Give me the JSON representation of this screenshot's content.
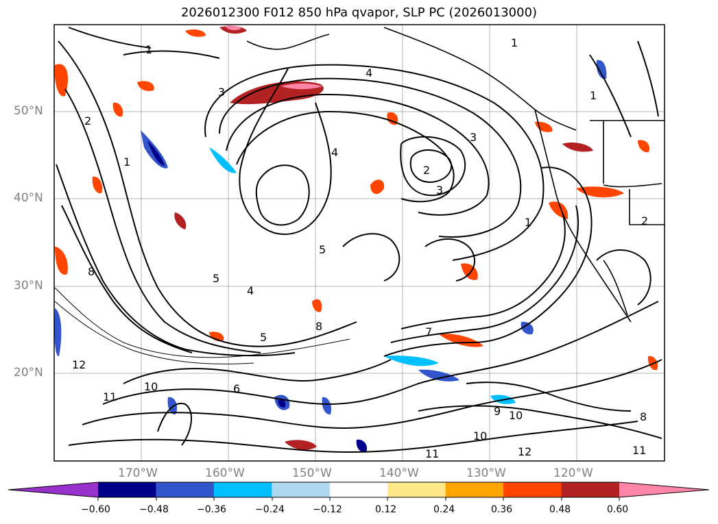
{
  "title": "2026012300 F012 850 hPa qvapor, SLP PC (2026013000)",
  "lat_labels": [
    "50°N",
    "40°N",
    "30°N",
    "20°N"
  ],
  "lon_labels": [
    "170°W",
    "160°W",
    "150°W",
    "140°W",
    "130°W",
    "120°W"
  ],
  "colorbar": {
    "colors": [
      "#9932cc",
      "#00008b",
      "#3355cc",
      "#00bfff",
      "#add8f0",
      "#ffffff",
      "#ffe88a",
      "#ffa500",
      "#ff4500",
      "#b22222",
      "#ff85a8"
    ],
    "ticks": [
      "−0.60",
      "−0.48",
      "−0.36",
      "−0.24",
      "−0.12",
      "0.12",
      "0.24",
      "0.36",
      "0.48",
      "0.60"
    ]
  },
  "contour_labels": [
    "1",
    "2",
    "3",
    "4",
    "5",
    "6",
    "7",
    "8",
    "9",
    "10",
    "11",
    "12"
  ]
}
